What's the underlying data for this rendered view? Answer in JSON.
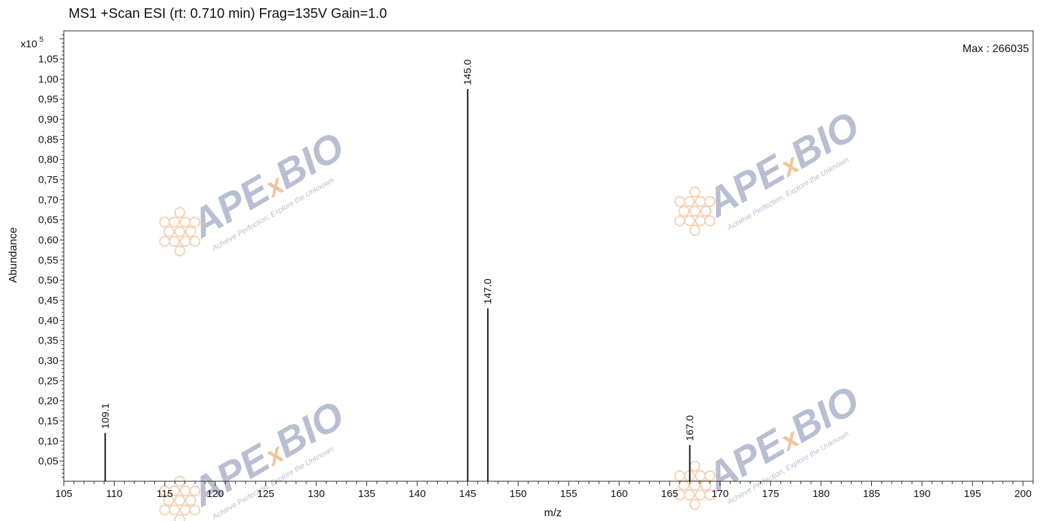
{
  "header": {
    "title": "MS1 +Scan ESI (rt: 0.710 min) Frag=135V Gain=1.0"
  },
  "watermark": {
    "brand_part1": "APE",
    "brand_x": "x",
    "brand_part2": "BIO",
    "tagline": "Achieve Perfection, Explore the Unknown",
    "colors": {
      "text": "#b9bfd2",
      "x": "#f1c49a",
      "logo": "#f3c9a8"
    }
  },
  "chart_data": {
    "type": "bar",
    "subtype": "mass-spectrum-stick",
    "title": "MS1 +Scan ESI (rt: 0.710 min) Frag=135V Gain=1.0",
    "xlabel": "m/z",
    "ylabel": "Abundance",
    "y_multiplier": "x10",
    "y_multiplier_exp": "5",
    "max_label": "Max : 266035",
    "xlim": [
      105,
      201
    ],
    "ylim": [
      0,
      1.12
    ],
    "x_ticks": [
      105,
      110,
      115,
      120,
      125,
      130,
      135,
      140,
      145,
      150,
      155,
      160,
      165,
      170,
      175,
      180,
      185,
      190,
      195,
      200
    ],
    "y_ticks": [
      0.05,
      0.1,
      0.15,
      0.2,
      0.25,
      0.3,
      0.35,
      0.4,
      0.45,
      0.5,
      0.55,
      0.6,
      0.65,
      0.7,
      0.75,
      0.8,
      0.85,
      0.9,
      0.95,
      1.0,
      1.05
    ],
    "y_tick_labels": [
      "0,05",
      "0,10",
      "0,15",
      "0,20",
      "0,25",
      "0,30",
      "0,35",
      "0,40",
      "0,45",
      "0,50",
      "0,55",
      "0,60",
      "0,65",
      "0,70",
      "0,75",
      "0,80",
      "0,85",
      "0,90",
      "0,95",
      "1,00",
      "1,05"
    ],
    "peaks": [
      {
        "mz": 109.1,
        "label": "109.1",
        "abundance": 0.12
      },
      {
        "mz": 145.0,
        "label": "145.0",
        "abundance": 0.975
      },
      {
        "mz": 147.0,
        "label": "147.0",
        "abundance": 0.43
      },
      {
        "mz": 167.0,
        "label": "167.0",
        "abundance": 0.09
      }
    ],
    "grid": false,
    "legend": "none"
  }
}
